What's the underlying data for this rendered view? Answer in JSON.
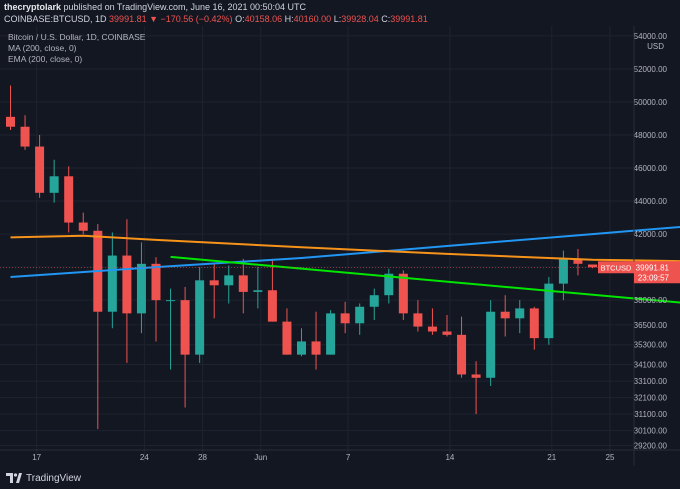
{
  "header": {
    "user": "thecryptolark",
    "published": "published on TradingView.com, June 16, 2021 00:50:04 UTC",
    "symbol": "COINBASE:BTCUSD, 1D",
    "change": "39991.81 ▼ −170.56 (−0.42%)",
    "o_label": "O:",
    "o_value": "40158.06",
    "h_label": "H:",
    "h_value": "40160.00",
    "l_label": "L:",
    "l_value": "39928.04",
    "c_label": "C:",
    "c_value": "39991.81"
  },
  "legend": {
    "title": "Bitcoin / U.S. Dollar, 1D, COINBASE",
    "ma": "MA (200, close, 0)",
    "ema": "EMA (200, close, 0)"
  },
  "footer": {
    "logo": "TradingView",
    "logo_icon": "tradingview-logo-icon"
  },
  "colors": {
    "background": "#131722",
    "up": "#26a69a",
    "down": "#ef5350",
    "ma": "#f7931a",
    "ema": "#2196f3",
    "trendline": "#00e600",
    "grid": "#1e2330",
    "text": "#b2b5be"
  },
  "chart_data": {
    "type": "candlestick",
    "y_unit_label": "USD",
    "ylim": [
      28200,
      54600
    ],
    "y_ticks": [
      "54000.00",
      "52000.00",
      "50000.00",
      "48000.00",
      "46000.00",
      "44000.00",
      "42000.00",
      "40000.00",
      "38000.00",
      "36500.00",
      "35300.00",
      "34100.00",
      "33100.00",
      "32100.00",
      "31100.00",
      "30100.00",
      "29200.00"
    ],
    "x_ticks": [
      "17",
      "24",
      "28",
      "Jun",
      "7",
      "14",
      "21",
      "25"
    ],
    "grid": true,
    "last_price": {
      "label": "BTCUSD",
      "value": "39991.81",
      "countdown": "23:09:57"
    },
    "candles": [
      {
        "o": 49100,
        "h": 51000,
        "l": 48300,
        "c": 48500
      },
      {
        "o": 48500,
        "h": 49200,
        "l": 47100,
        "c": 47300
      },
      {
        "o": 47300,
        "h": 48000,
        "l": 44200,
        "c": 44500
      },
      {
        "o": 44500,
        "h": 46500,
        "l": 43900,
        "c": 45500
      },
      {
        "o": 45500,
        "h": 46100,
        "l": 42100,
        "c": 42700
      },
      {
        "o": 42700,
        "h": 43300,
        "l": 42000,
        "c": 42200
      },
      {
        "o": 42200,
        "h": 42600,
        "l": 30200,
        "c": 37300
      },
      {
        "o": 37300,
        "h": 42100,
        "l": 36300,
        "c": 40700
      },
      {
        "o": 40700,
        "h": 42900,
        "l": 34200,
        "c": 37200
      },
      {
        "o": 37200,
        "h": 41500,
        "l": 36000,
        "c": 40200
      },
      {
        "o": 40200,
        "h": 40600,
        "l": 35500,
        "c": 38000
      },
      {
        "o": 38000,
        "h": 38700,
        "l": 33800,
        "c": 38000
      },
      {
        "o": 38000,
        "h": 38800,
        "l": 31500,
        "c": 34700
      },
      {
        "o": 34700,
        "h": 40000,
        "l": 34200,
        "c": 39200
      },
      {
        "o": 39200,
        "h": 40200,
        "l": 36900,
        "c": 38900
      },
      {
        "o": 38900,
        "h": 40100,
        "l": 37800,
        "c": 39500
      },
      {
        "o": 39500,
        "h": 40500,
        "l": 37200,
        "c": 38500
      },
      {
        "o": 38500,
        "h": 40000,
        "l": 37500,
        "c": 38600
      },
      {
        "o": 38600,
        "h": 40500,
        "l": 36700,
        "c": 36700
      },
      {
        "o": 36700,
        "h": 37500,
        "l": 34700,
        "c": 34700
      },
      {
        "o": 34700,
        "h": 36300,
        "l": 34600,
        "c": 35500
      },
      {
        "o": 35500,
        "h": 37300,
        "l": 33800,
        "c": 34700
      },
      {
        "o": 34700,
        "h": 37400,
        "l": 34700,
        "c": 37200
      },
      {
        "o": 37200,
        "h": 37900,
        "l": 36000,
        "c": 36600
      },
      {
        "o": 36600,
        "h": 37800,
        "l": 35900,
        "c": 37600
      },
      {
        "o": 37600,
        "h": 38700,
        "l": 36800,
        "c": 38300
      },
      {
        "o": 38300,
        "h": 39900,
        "l": 37800,
        "c": 39600
      },
      {
        "o": 39600,
        "h": 39800,
        "l": 36800,
        "c": 37200
      },
      {
        "o": 37200,
        "h": 38000,
        "l": 36100,
        "c": 36400
      },
      {
        "o": 36400,
        "h": 37500,
        "l": 35900,
        "c": 36100
      },
      {
        "o": 36100,
        "h": 37100,
        "l": 35800,
        "c": 35900
      },
      {
        "o": 35900,
        "h": 37000,
        "l": 33300,
        "c": 33500
      },
      {
        "o": 33500,
        "h": 34300,
        "l": 31100,
        "c": 33300
      },
      {
        "o": 33300,
        "h": 38000,
        "l": 32800,
        "c": 37300
      },
      {
        "o": 37300,
        "h": 38300,
        "l": 35800,
        "c": 36900
      },
      {
        "o": 36900,
        "h": 38000,
        "l": 36000,
        "c": 37500
      },
      {
        "o": 37500,
        "h": 37600,
        "l": 35000,
        "c": 35700
      },
      {
        "o": 35700,
        "h": 39400,
        "l": 35300,
        "c": 39000
      },
      {
        "o": 39000,
        "h": 41000,
        "l": 38000,
        "c": 40500
      },
      {
        "o": 40500,
        "h": 41100,
        "l": 39500,
        "c": 40200
      },
      {
        "o": 40158.06,
        "h": 40160,
        "l": 39928.04,
        "c": 39991.81
      }
    ],
    "ma200": [
      [
        0,
        39400
      ],
      [
        10,
        40000
      ],
      [
        20,
        40550
      ],
      [
        30,
        41280
      ],
      [
        40,
        42000
      ],
      [
        47,
        42500
      ]
    ],
    "ema200": [
      [
        0,
        41800
      ],
      [
        5,
        41900
      ],
      [
        10,
        41650
      ],
      [
        20,
        41200
      ],
      [
        30,
        40800
      ],
      [
        40,
        40450
      ],
      [
        47,
        40350
      ]
    ],
    "trendline": [
      [
        11,
        40620
      ],
      [
        48,
        37700
      ]
    ]
  }
}
